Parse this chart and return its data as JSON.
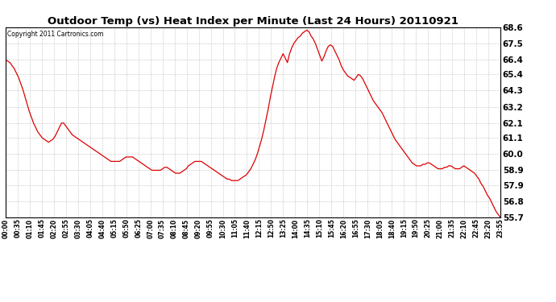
{
  "title": "Outdoor Temp (vs) Heat Index per Minute (Last 24 Hours) 20110921",
  "copyright": "Copyright 2011 Cartronics.com",
  "line_color": "#dd0000",
  "bg_color": "#ffffff",
  "grid_color": "#bbbbbb",
  "ymin": 55.7,
  "ymax": 68.6,
  "yticks": [
    55.7,
    56.8,
    57.9,
    58.9,
    60.0,
    61.1,
    62.1,
    63.2,
    64.3,
    65.4,
    66.4,
    67.5,
    68.6
  ],
  "xtick_labels": [
    "00:00",
    "00:35",
    "01:10",
    "01:45",
    "02:20",
    "02:55",
    "03:30",
    "04:05",
    "04:40",
    "05:15",
    "05:50",
    "06:25",
    "07:00",
    "07:35",
    "08:10",
    "08:45",
    "09:20",
    "09:55",
    "10:30",
    "11:05",
    "11:40",
    "12:15",
    "12:50",
    "13:25",
    "14:00",
    "14:35",
    "15:10",
    "15:45",
    "16:20",
    "16:55",
    "17:30",
    "18:05",
    "18:40",
    "19:15",
    "19:50",
    "20:25",
    "21:00",
    "21:35",
    "22:10",
    "22:45",
    "23:20",
    "23:55"
  ],
  "data_y": [
    66.4,
    66.3,
    66.2,
    66.0,
    65.8,
    65.5,
    65.2,
    64.8,
    64.4,
    63.9,
    63.4,
    62.9,
    62.5,
    62.1,
    61.8,
    61.5,
    61.3,
    61.1,
    61.0,
    60.9,
    60.8,
    60.9,
    61.0,
    61.2,
    61.5,
    61.8,
    62.1,
    62.1,
    61.9,
    61.7,
    61.5,
    61.3,
    61.2,
    61.1,
    61.0,
    60.9,
    60.8,
    60.7,
    60.6,
    60.5,
    60.4,
    60.3,
    60.2,
    60.1,
    60.0,
    59.9,
    59.8,
    59.7,
    59.6,
    59.5,
    59.5,
    59.5,
    59.5,
    59.5,
    59.6,
    59.7,
    59.8,
    59.8,
    59.8,
    59.8,
    59.7,
    59.6,
    59.5,
    59.4,
    59.3,
    59.2,
    59.1,
    59.0,
    58.9,
    58.9,
    58.9,
    58.9,
    58.9,
    59.0,
    59.1,
    59.1,
    59.0,
    58.9,
    58.8,
    58.7,
    58.7,
    58.7,
    58.8,
    58.9,
    59.0,
    59.2,
    59.3,
    59.4,
    59.5,
    59.5,
    59.5,
    59.5,
    59.4,
    59.3,
    59.2,
    59.1,
    59.0,
    58.9,
    58.8,
    58.7,
    58.6,
    58.5,
    58.4,
    58.3,
    58.3,
    58.2,
    58.2,
    58.2,
    58.2,
    58.3,
    58.4,
    58.5,
    58.6,
    58.8,
    59.0,
    59.3,
    59.6,
    60.0,
    60.5,
    61.0,
    61.6,
    62.3,
    63.0,
    63.8,
    64.5,
    65.2,
    65.8,
    66.2,
    66.5,
    66.8,
    66.5,
    66.2,
    66.8,
    67.2,
    67.5,
    67.7,
    67.9,
    68.0,
    68.2,
    68.3,
    68.4,
    68.3,
    68.0,
    67.8,
    67.5,
    67.1,
    66.7,
    66.3,
    66.6,
    67.0,
    67.3,
    67.4,
    67.3,
    67.0,
    66.7,
    66.4,
    66.0,
    65.7,
    65.5,
    65.3,
    65.2,
    65.1,
    65.0,
    65.2,
    65.4,
    65.3,
    65.1,
    64.8,
    64.5,
    64.2,
    63.9,
    63.6,
    63.4,
    63.2,
    63.0,
    62.8,
    62.5,
    62.2,
    61.9,
    61.6,
    61.3,
    61.0,
    60.8,
    60.6,
    60.4,
    60.2,
    60.0,
    59.8,
    59.6,
    59.4,
    59.3,
    59.2,
    59.2,
    59.2,
    59.3,
    59.3,
    59.4,
    59.4,
    59.3,
    59.2,
    59.1,
    59.0,
    59.0,
    59.0,
    59.1,
    59.1,
    59.2,
    59.2,
    59.1,
    59.0,
    59.0,
    59.0,
    59.1,
    59.2,
    59.1,
    59.0,
    58.9,
    58.8,
    58.7,
    58.5,
    58.3,
    58.0,
    57.8,
    57.5,
    57.2,
    57.0,
    56.7,
    56.4,
    56.1,
    55.9,
    55.7
  ]
}
